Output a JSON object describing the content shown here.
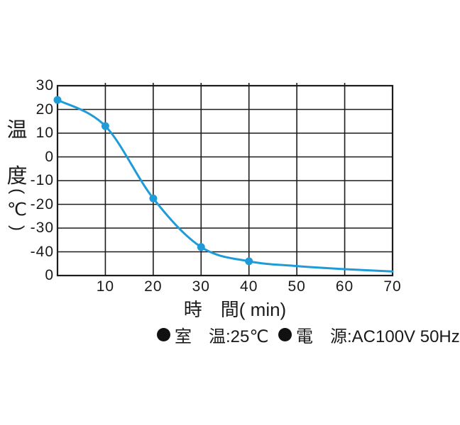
{
  "chart_data": {
    "type": "line",
    "title": "",
    "xlabel": "時　間( min)",
    "ylabel": "温度(℃)",
    "ylabel_vertical_chars": {
      "c1": "温",
      "c2": "度",
      "open": "(",
      "unit": "℃",
      "close": ")"
    },
    "x_ticks": [
      "10",
      "20",
      "30",
      "40",
      "50",
      "60",
      "70"
    ],
    "y_ticks": [
      "30",
      "20",
      "10",
      "0",
      "-10",
      "-20",
      "-30",
      "-40"
    ],
    "origin_label": "0",
    "xlim": [
      0,
      70
    ],
    "ylim": [
      -50,
      30
    ],
    "grid": true,
    "grid_color": "#1c1c1c",
    "legend_position": "none",
    "series": [
      {
        "name": "temperature-cooling-curve",
        "color": "#1f9cd8",
        "x": [
          0,
          10,
          20,
          30,
          40,
          50,
          60,
          70
        ],
        "y": [
          24,
          13,
          -17.5,
          -38,
          -44,
          -46,
          -47.3,
          -48.3
        ],
        "markers_at_x": [
          0,
          10,
          20,
          30,
          40
        ]
      }
    ]
  },
  "footnotes": [
    {
      "icon": "bullet-icon",
      "text": "室　温:25℃"
    },
    {
      "icon": "bullet-icon",
      "text": "電　源:AC100V 50Hz"
    }
  ]
}
